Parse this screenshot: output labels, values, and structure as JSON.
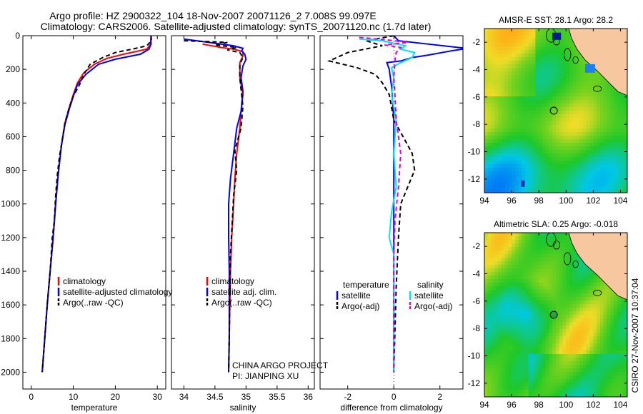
{
  "figure": {
    "title_line1": "Argo profile: HZ 2900322_104 18-Nov-2007 20071126_2 7.008S 99.097E",
    "title_line2": "Climatology: CARS2006. Satellite-adjusted climatology: synTS_20071120.nc (1.7d later)",
    "side_label": "CSIRO 27-Nov-2007 10:37:04",
    "project_line1": "CHINA ARGO PROJECT",
    "project_line2": "PI: JIANPING XU"
  },
  "colors": {
    "red": "#ff0000",
    "blue": "#0000ff",
    "black": "#000000",
    "cyan": "#00e5ee",
    "magenta": "#e000e0",
    "land": "#f7c8a0"
  },
  "chart_data": [
    {
      "type": "line",
      "id": "temperature",
      "xlabel": "temperature",
      "ylabel": "",
      "xlim": [
        -2,
        32
      ],
      "ylim": [
        2100,
        0
      ],
      "xticks": [
        0,
        10,
        20,
        30
      ],
      "yticks": [
        0,
        200,
        400,
        600,
        800,
        1000,
        1200,
        1400,
        1600,
        1800,
        2000
      ],
      "legend": [
        "climatology",
        "satellite-adjusted climatology",
        "Argo(..raw -QC)"
      ],
      "series": [
        {
          "name": "climatology",
          "color": "red",
          "dash": false,
          "points": [
            [
              28.5,
              0
            ],
            [
              28.4,
              50
            ],
            [
              27.5,
              80
            ],
            [
              22,
              110
            ],
            [
              18,
              135
            ],
            [
              15,
              170
            ],
            [
              12.5,
              220
            ],
            [
              11,
              280
            ],
            [
              10,
              350
            ],
            [
              9,
              430
            ],
            [
              8,
              520
            ],
            [
              7.2,
              650
            ],
            [
              6.5,
              800
            ],
            [
              5.8,
              1000
            ],
            [
              5.2,
              1200
            ],
            [
              4.5,
              1400
            ],
            [
              3.8,
              1600
            ],
            [
              3.2,
              1800
            ],
            [
              2.6,
              2000
            ]
          ]
        },
        {
          "name": "satellite-adjusted climatology",
          "color": "blue",
          "dash": false,
          "points": [
            [
              28.5,
              0
            ],
            [
              28.5,
              50
            ],
            [
              28,
              80
            ],
            [
              26,
              110
            ],
            [
              20,
              140
            ],
            [
              16,
              170
            ],
            [
              13,
              230
            ],
            [
              11,
              290
            ],
            [
              10,
              360
            ],
            [
              9,
              440
            ],
            [
              8,
              530
            ],
            [
              7.2,
              650
            ],
            [
              6.5,
              800
            ],
            [
              5.8,
              1000
            ],
            [
              5.2,
              1200
            ],
            [
              4.5,
              1400
            ],
            [
              3.8,
              1600
            ],
            [
              3.2,
              1800
            ],
            [
              2.6,
              2000
            ]
          ]
        },
        {
          "name": "Argo(..raw -QC)",
          "color": "black",
          "dash": true,
          "points": [
            [
              28.5,
              0
            ],
            [
              28.6,
              30
            ],
            [
              27.5,
              60
            ],
            [
              24,
              80
            ],
            [
              20,
              100
            ],
            [
              17,
              130
            ],
            [
              14,
              170
            ],
            [
              12.5,
              230
            ],
            [
              11.5,
              290
            ],
            [
              10,
              360
            ],
            [
              9,
              430
            ],
            [
              8,
              520
            ],
            [
              7.5,
              600
            ],
            [
              6.7,
              720
            ],
            [
              6.2,
              830
            ],
            [
              5.8,
              950
            ],
            [
              5.5,
              1100
            ],
            [
              5,
              1200
            ],
            [
              4.5,
              1400
            ],
            [
              3.8,
              1600
            ],
            [
              3.2,
              1800
            ],
            [
              2.6,
              2000
            ]
          ]
        }
      ]
    },
    {
      "type": "line",
      "id": "salinity",
      "xlabel": "salinity",
      "xlim": [
        33.8,
        36.1
      ],
      "ylim": [
        2100,
        0
      ],
      "xticks": [
        34,
        34.5,
        35,
        35.5,
        36
      ],
      "yticks": [],
      "legend": [
        "climatology",
        "satellite adj. clim.",
        "Argo(..raw -QC)"
      ],
      "series": [
        {
          "name": "climatology",
          "color": "red",
          "dash": false,
          "points": [
            [
              34.3,
              50
            ],
            [
              34.6,
              70
            ],
            [
              34.8,
              80
            ],
            [
              34.95,
              95
            ],
            [
              34.95,
              120
            ],
            [
              34.9,
              160
            ],
            [
              34.9,
              250
            ],
            [
              34.95,
              350
            ],
            [
              34.92,
              450
            ],
            [
              34.9,
              550
            ],
            [
              34.85,
              700
            ],
            [
              34.82,
              850
            ],
            [
              34.8,
              1000
            ],
            [
              34.77,
              1200
            ],
            [
              34.75,
              1400
            ],
            [
              34.74,
              1600
            ],
            [
              34.73,
              1800
            ],
            [
              34.72,
              2000
            ]
          ]
        },
        {
          "name": "satellite adj. clim.",
          "color": "blue",
          "dash": false,
          "points": [
            [
              34.0,
              20
            ],
            [
              34.4,
              40
            ],
            [
              34.8,
              60
            ],
            [
              34.95,
              75
            ],
            [
              34.93,
              90
            ],
            [
              34.98,
              110
            ],
            [
              35.0,
              140
            ],
            [
              34.95,
              180
            ],
            [
              34.92,
              250
            ],
            [
              34.95,
              330
            ],
            [
              34.92,
              450
            ],
            [
              34.85,
              550
            ],
            [
              34.8,
              700
            ],
            [
              34.75,
              850
            ],
            [
              34.72,
              1000
            ],
            [
              34.72,
              1200
            ],
            [
              34.73,
              1400
            ],
            [
              34.73,
              1600
            ],
            [
              34.73,
              1800
            ],
            [
              34.72,
              2000
            ]
          ]
        },
        {
          "name": "Argo(..raw -QC)",
          "color": "black",
          "dash": true,
          "points": [
            [
              34.0,
              30
            ],
            [
              34.4,
              35
            ],
            [
              34.7,
              40
            ],
            [
              34.5,
              55
            ],
            [
              34.85,
              70
            ],
            [
              34.7,
              85
            ],
            [
              34.9,
              100
            ],
            [
              34.95,
              130
            ],
            [
              34.9,
              170
            ],
            [
              34.9,
              250
            ],
            [
              34.92,
              320
            ],
            [
              34.95,
              420
            ],
            [
              34.92,
              550
            ],
            [
              34.82,
              680
            ],
            [
              34.85,
              800
            ],
            [
              34.8,
              950
            ],
            [
              34.78,
              1100
            ],
            [
              34.75,
              1300
            ],
            [
              34.74,
              1500
            ],
            [
              34.73,
              1800
            ],
            [
              34.72,
              2000
            ]
          ]
        }
      ]
    },
    {
      "type": "line",
      "id": "difference",
      "xlabel": "difference from climatology",
      "xlim": [
        -3.2,
        3
      ],
      "ylim": [
        2100,
        0
      ],
      "xticks": [
        -2,
        0,
        2
      ],
      "yticks": [],
      "legend_left_title": "temperature",
      "legend_right_title": "salinity",
      "legend_left": [
        "satellite",
        "Argo(-adj)"
      ],
      "legend_right": [
        "satellite",
        "Argo(-adj)"
      ],
      "series": [
        {
          "name": "temperature satellite",
          "color": "blue",
          "dash": false,
          "points": [
            [
              0,
              0
            ],
            [
              0.2,
              30
            ],
            [
              2.8,
              70
            ],
            [
              3.2,
              75
            ],
            [
              2.5,
              90
            ],
            [
              1.5,
              115
            ],
            [
              0.8,
              130
            ],
            [
              0.3,
              150
            ],
            [
              -0.3,
              160
            ],
            [
              -0.2,
              200
            ],
            [
              -0.1,
              300
            ],
            [
              0,
              500
            ],
            [
              0,
              800
            ],
            [
              0,
              1000
            ],
            [
              0,
              1500
            ],
            [
              0,
              2000
            ]
          ]
        },
        {
          "name": "temperature Argo(-adj)",
          "color": "black",
          "dash": true,
          "points": [
            [
              0,
              0
            ],
            [
              -1.2,
              30
            ],
            [
              -0.5,
              60
            ],
            [
              -2.0,
              100
            ],
            [
              -2.8,
              150
            ],
            [
              -1.6,
              190
            ],
            [
              -0.8,
              230
            ],
            [
              -0.5,
              280
            ],
            [
              -0.2,
              350
            ],
            [
              0,
              500
            ],
            [
              0.4,
              600
            ],
            [
              0.8,
              700
            ],
            [
              0.9,
              800
            ],
            [
              0.6,
              900
            ],
            [
              0.3,
              1000
            ],
            [
              0.2,
              1200
            ],
            [
              0.1,
              1500
            ],
            [
              0,
              2000
            ]
          ]
        },
        {
          "name": "salinity satellite",
          "color": "cyan",
          "dash": false,
          "points": [
            [
              -1.5,
              20
            ],
            [
              -0.5,
              30
            ],
            [
              0.5,
              60
            ],
            [
              0.3,
              80
            ],
            [
              0.9,
              100
            ],
            [
              0.8,
              130
            ],
            [
              0.3,
              160
            ],
            [
              -0.1,
              190
            ],
            [
              0,
              250
            ],
            [
              -0.1,
              350
            ],
            [
              0.1,
              500
            ],
            [
              0,
              700
            ],
            [
              0.1,
              900
            ],
            [
              -0.1,
              1050
            ],
            [
              -0.2,
              1200
            ],
            [
              0,
              1300
            ],
            [
              0,
              1600
            ],
            [
              0,
              2000
            ]
          ]
        },
        {
          "name": "salinity Argo(-adj)",
          "color": "magenta",
          "dash": true,
          "points": [
            [
              -1.5,
              10
            ],
            [
              -0.3,
              25
            ],
            [
              0.6,
              40
            ],
            [
              -0.4,
              55
            ],
            [
              0.3,
              70
            ],
            [
              0.1,
              100
            ],
            [
              0.05,
              150
            ],
            [
              0,
              250
            ],
            [
              0.05,
              350
            ],
            [
              0.1,
              500
            ],
            [
              0.3,
              700
            ],
            [
              0.2,
              900
            ],
            [
              0.05,
              1100
            ],
            [
              0,
              1300
            ],
            [
              0,
              1600
            ],
            [
              0,
              2000
            ]
          ]
        }
      ]
    },
    {
      "type": "heatmap",
      "id": "sst_map",
      "title": "AMSR-E SST: 28.1 Argo: 28.2",
      "xlim": [
        94,
        104.5
      ],
      "ylim": [
        -13,
        -1
      ],
      "xticks": [
        94,
        96,
        98,
        100,
        102,
        104
      ],
      "yticks": [
        -2,
        -4,
        -6,
        -8,
        -10,
        -12
      ],
      "argo_marker": [
        99.1,
        -7.0
      ]
    },
    {
      "type": "heatmap",
      "id": "sla_map",
      "title": "Altimetric SLA: 0.25 Argo: -0.018",
      "xlim": [
        94,
        104.5
      ],
      "ylim": [
        -13,
        -1
      ],
      "xticks": [
        94,
        96,
        98,
        100,
        102,
        104
      ],
      "yticks": [
        -2,
        -4,
        -6,
        -8,
        -10,
        -12
      ],
      "argo_marker": [
        99.1,
        -7.0
      ]
    }
  ]
}
